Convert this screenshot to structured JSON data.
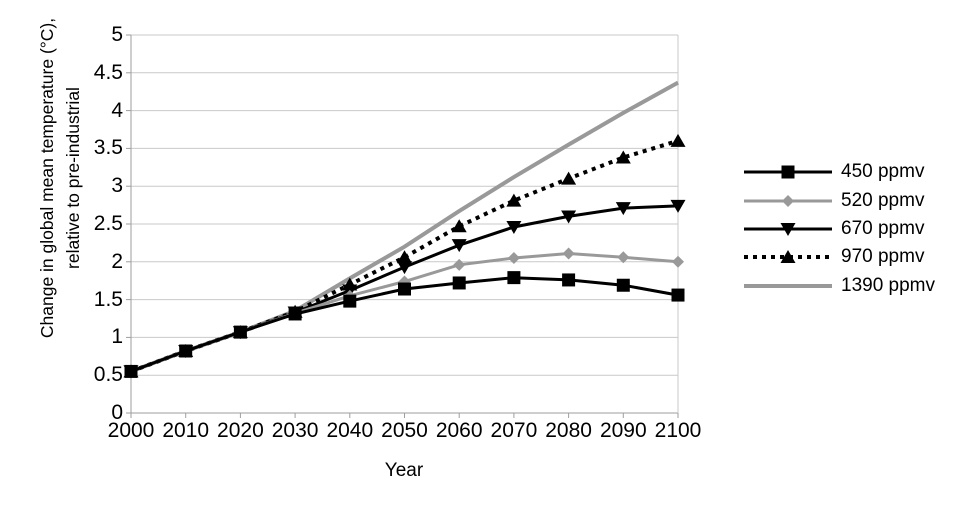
{
  "chart_data": {
    "type": "line",
    "xlabel": "Year",
    "ylabel": "Change in global mean temperature (°C), relative to pre-industrial",
    "ylabel_lines": [
      "Change in global mean temperature (°C),",
      "relative to pre-industrial"
    ],
    "x": [
      2000,
      2010,
      2020,
      2030,
      2040,
      2050,
      2060,
      2070,
      2080,
      2090,
      2100
    ],
    "ylim": [
      0,
      5
    ],
    "yticks": [
      0,
      0.5,
      1,
      1.5,
      2,
      2.5,
      3,
      3.5,
      4,
      4.5,
      5
    ],
    "grid": "horizontal",
    "legend_position": "right",
    "axis_color": "#9e9e9e",
    "grid_color": "#c9c9c9",
    "series": [
      {
        "name": "450 ppmv",
        "color": "#000000",
        "line": "solid",
        "line_width": 3,
        "marker": "square",
        "values": [
          0.55,
          0.82,
          1.07,
          1.31,
          1.48,
          1.64,
          1.72,
          1.79,
          1.76,
          1.69,
          1.56
        ]
      },
      {
        "name": "520 ppmv",
        "color": "#999999",
        "line": "solid",
        "line_width": 3,
        "marker": "diamond",
        "values": [
          0.55,
          0.82,
          1.07,
          1.32,
          1.55,
          1.74,
          1.96,
          2.05,
          2.11,
          2.06,
          2.0
        ]
      },
      {
        "name": "670 ppmv",
        "color": "#000000",
        "line": "solid",
        "line_width": 3,
        "marker": "triangle-down",
        "values": [
          0.55,
          0.82,
          1.07,
          1.33,
          1.62,
          1.93,
          2.22,
          2.46,
          2.6,
          2.71,
          2.74
        ]
      },
      {
        "name": "970 ppmv",
        "color": "#000000",
        "line": "dotted",
        "line_width": 4,
        "marker": "triangle-up",
        "values": [
          0.55,
          0.82,
          1.07,
          1.34,
          1.7,
          2.06,
          2.47,
          2.81,
          3.1,
          3.38,
          3.6
        ]
      },
      {
        "name": "1390 ppmv",
        "color": "#999999",
        "line": "solid",
        "line_width": 4,
        "marker": "none",
        "values": [
          0.55,
          0.82,
          1.07,
          1.35,
          1.78,
          2.2,
          2.67,
          3.12,
          3.55,
          3.97,
          4.37
        ]
      }
    ]
  }
}
